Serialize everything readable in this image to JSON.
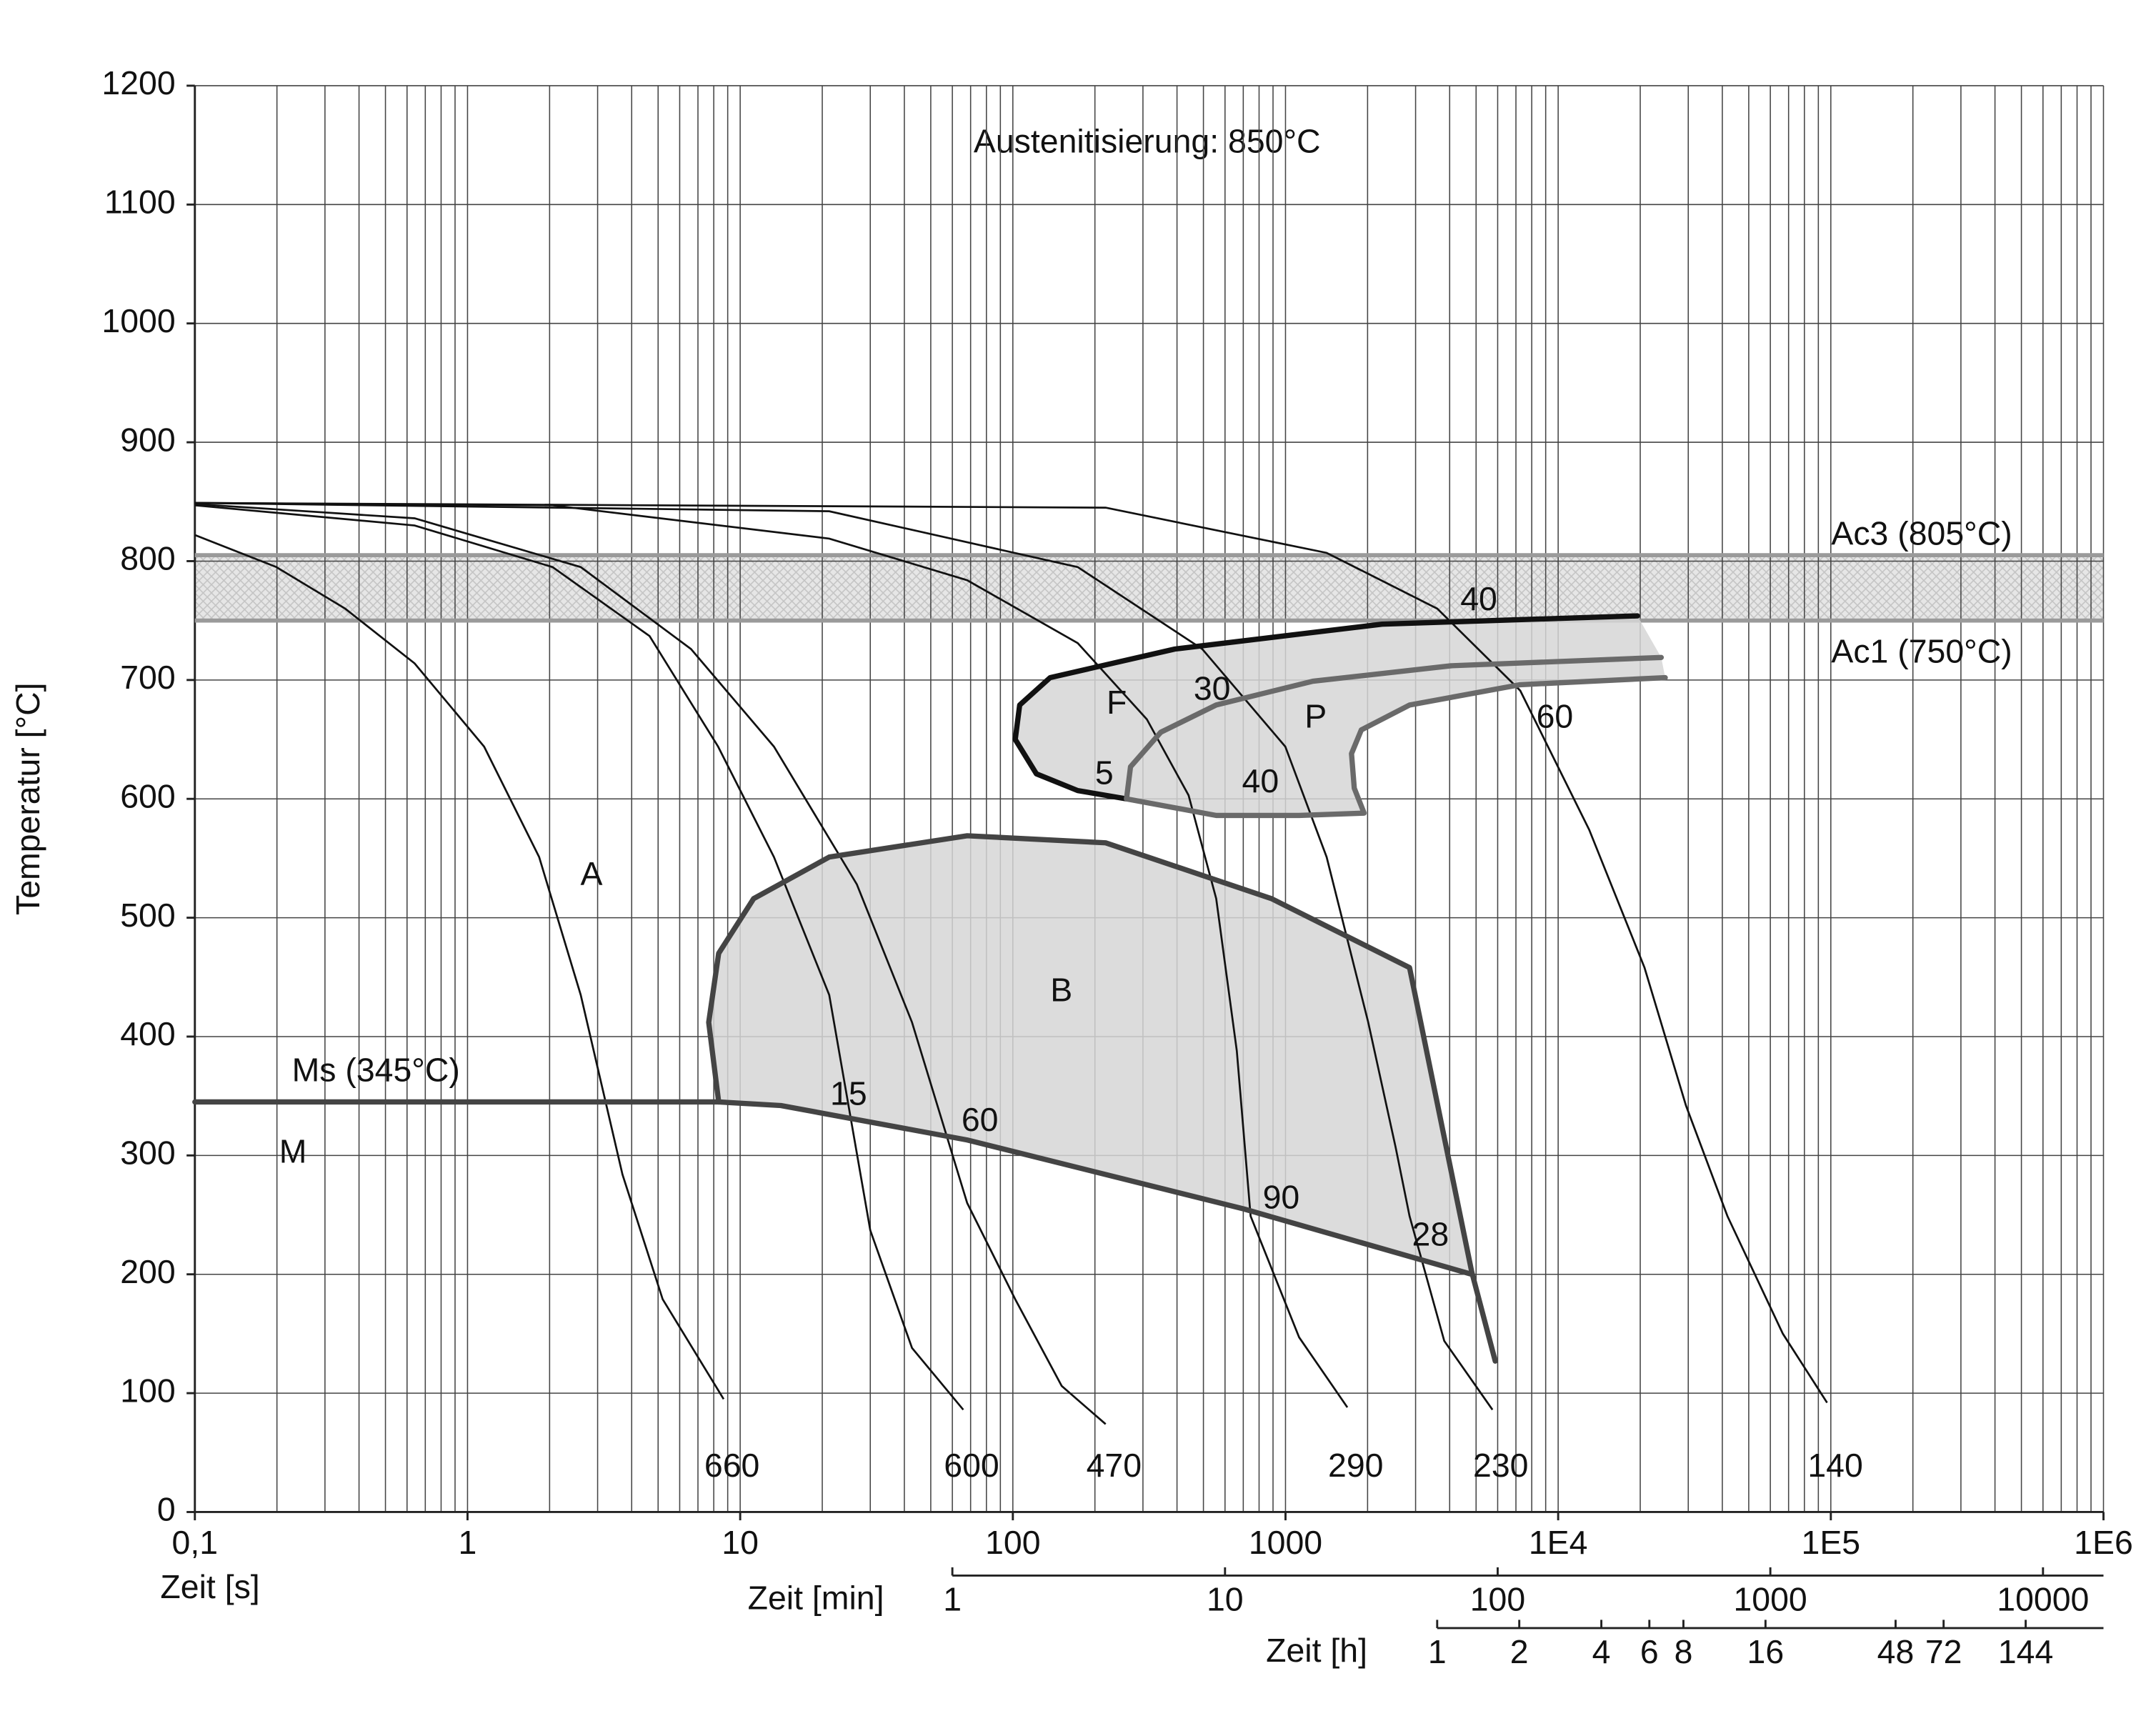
{
  "chart_data": {
    "type": "line",
    "title": "Austenitisierung: 850°C",
    "xlabel": "Zeit [s]",
    "ylabel": "Temperatur [°C]",
    "xscale": "log",
    "xlim": [
      0.1,
      1000000
    ],
    "ylim": [
      0,
      1200
    ],
    "xticks": [
      {
        "value": 0.1,
        "label": "0,1"
      },
      1,
      10,
      100,
      1000,
      {
        "value": 10000,
        "label": "1E4"
      },
      {
        "value": 100000,
        "label": "1E5"
      },
      {
        "value": 1000000,
        "label": "1E6"
      }
    ],
    "yticks": [
      0,
      100,
      200,
      300,
      400,
      500,
      600,
      700,
      800,
      900,
      1000,
      1100,
      1200
    ],
    "grid": true,
    "minor_grid": true,
    "secondary_x": [
      {
        "label": "Zeit [min]",
        "ticks": [
          {
            "value": 60,
            "label": "1"
          },
          {
            "value": 600,
            "label": "10"
          },
          {
            "value": 6000,
            "label": "100"
          },
          {
            "value": 60000,
            "label": "1000"
          },
          {
            "value": 600000,
            "label": "10000"
          }
        ]
      },
      {
        "label": "Zeit [h]",
        "ticks": [
          {
            "value": 3600,
            "label": "1"
          },
          {
            "value": 7200,
            "label": "2"
          },
          {
            "value": 14400,
            "label": "4"
          },
          {
            "value": 21600,
            "label": "6"
          },
          {
            "value": 28800,
            "label": "8"
          },
          {
            "value": 57600,
            "label": "16"
          },
          {
            "value": 172800,
            "label": "48"
          },
          {
            "value": 259200,
            "label": "72"
          },
          {
            "value": 518400,
            "label": "144"
          }
        ]
      }
    ],
    "hlines": [
      {
        "value": 805,
        "label": "Ac3 (805°C)"
      },
      {
        "value": 750,
        "label": "Ac1 (750°C)"
      }
    ],
    "hline_color": "#9a9a9a",
    "series": [
      {
        "name": "660",
        "color": "#111111",
        "x": [
          0.1,
          0.199,
          0.356,
          0.64,
          1.15,
          1.83,
          2.6,
          3.7,
          5.2,
          8.7
        ],
        "values": [
          822,
          795,
          760,
          714,
          644,
          551,
          435,
          284,
          179,
          95
        ]
      },
      {
        "name": "600",
        "color": "#111111",
        "x": [
          0.1,
          0.64,
          2.05,
          4.65,
          8.3,
          13.3,
          21.2,
          30,
          42.7,
          65.8
        ],
        "values": [
          847,
          830,
          795,
          737,
          644,
          551,
          435,
          237,
          138,
          86
        ]
      },
      {
        "name": "470",
        "color": "#111111",
        "x": [
          0.1,
          0.64,
          2.6,
          6.6,
          13.3,
          26.8,
          42.7,
          68,
          102,
          151,
          219
        ],
        "values": [
          848,
          836,
          795,
          726,
          644,
          528,
          412,
          260,
          179,
          106,
          74
        ]
      },
      {
        "name": "290",
        "color": "#111111",
        "x": [
          0.1,
          2.05,
          21.2,
          68,
          173,
          310,
          441,
          557,
          663,
          745,
          1122,
          1687
        ],
        "values": [
          849,
          847,
          819,
          784,
          731,
          667,
          603,
          516,
          388,
          249,
          147,
          88
        ]
      },
      {
        "name": "230",
        "color": "#111111",
        "x": [
          0.1,
          21.2,
          173,
          495,
          998,
          1416,
          2010,
          2535,
          2852,
          3819,
          5741
        ],
        "values": [
          849,
          842,
          795,
          726,
          644,
          551,
          412,
          307,
          249,
          144,
          86
        ]
      },
      {
        "name": "140",
        "color": "#111111",
        "x": [
          0.1,
          219,
          1416,
          3603,
          7261,
          13002,
          20740,
          29440,
          41780,
          66680,
          96830
        ],
        "values": [
          849,
          845,
          807,
          760,
          691,
          574,
          458,
          342,
          249,
          150,
          92
        ]
      }
    ],
    "areas": [
      {
        "label": "F",
        "fill": "#d6d6d6",
        "x": [
          19540,
          2259,
          393,
          137,
          106,
          102,
          122,
          173,
          261,
          270,
          349,
          557,
          1260,
          4046,
          23870
        ],
        "values": [
          754,
          747,
          726,
          702,
          679,
          650,
          621,
          607,
          600,
          627,
          656,
          679,
          699,
          712,
          719
        ]
      },
      {
        "label": "P",
        "fill": "#d6d6d6",
        "x": [
          261,
          270,
          349,
          557,
          1260,
          4046,
          23870,
          24700,
          7261,
          2852,
          1897,
          1746,
          1787,
          1941,
          1122,
          557
        ],
        "values": [
          600,
          627,
          656,
          679,
          699,
          712,
          719,
          702,
          696,
          679,
          658,
          638,
          609,
          588,
          586,
          586
        ]
      },
      {
        "label": "B",
        "fill": "#d6d6d6",
        "x": [
          8.34,
          7.67,
          8.34,
          11.2,
          21.2,
          68,
          219,
          888,
          2852,
          4820,
          703,
          68,
          14.1,
          8.34
        ],
        "values": [
          345,
          412,
          470,
          516,
          551,
          569,
          563,
          516,
          458,
          202,
          255,
          313,
          342,
          345
        ]
      }
    ],
    "boundaries": [
      {
        "color": "#111111",
        "x": [
          19540,
          2259,
          393,
          137,
          106,
          102,
          122,
          173,
          261
        ],
        "values": [
          754,
          747,
          726,
          702,
          679,
          650,
          621,
          607,
          600
        ]
      },
      {
        "color": "#6a6a6a",
        "x": [
          261,
          270,
          349,
          557,
          1260,
          4046,
          23870
        ],
        "values": [
          600,
          627,
          656,
          679,
          699,
          712,
          719
        ]
      },
      {
        "color": "#6a6a6a",
        "x": [
          24700,
          7261,
          2852,
          1897,
          1746,
          1787,
          1941,
          1122,
          557,
          261
        ],
        "values": [
          702,
          696,
          679,
          658,
          638,
          609,
          588,
          586,
          586,
          600
        ]
      },
      {
        "color": "#444444",
        "x": [
          8.34,
          7.67,
          8.34,
          11.2,
          21.2,
          68,
          219,
          888,
          2852,
          4820,
          5880
        ],
        "values": [
          345,
          412,
          470,
          516,
          551,
          569,
          563,
          516,
          458,
          202,
          127
        ]
      },
      {
        "label": "Ms (345°C)",
        "color": "#444444",
        "x": [
          0.1,
          8.34,
          14.1,
          68,
          703,
          4820
        ],
        "values": [
          345,
          345,
          342,
          313,
          255,
          200
        ]
      }
    ],
    "annotations": [
      "A",
      "M",
      "40",
      "30",
      "5",
      "40",
      "60",
      "15",
      "60",
      "90",
      "28"
    ]
  }
}
